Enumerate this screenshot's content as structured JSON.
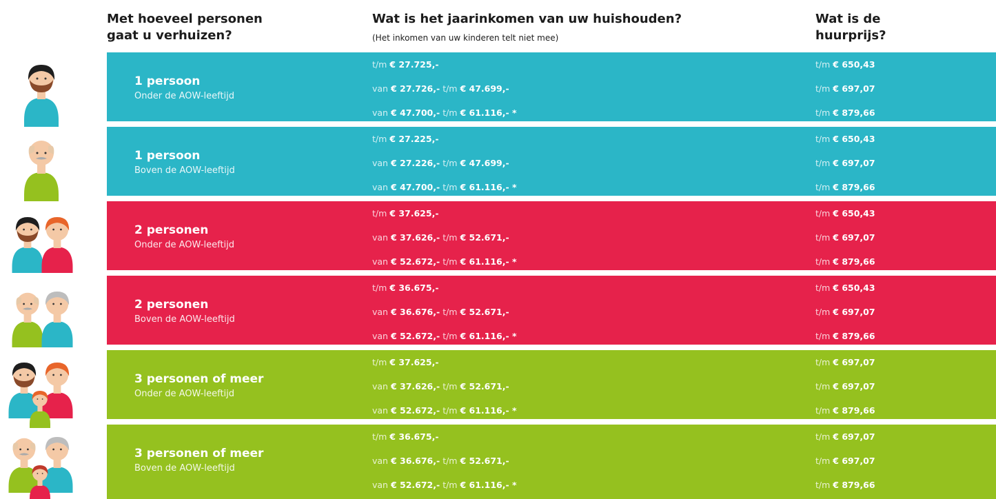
{
  "headers": {
    "persons": "Met hoeveel personen gaat u verhuizen?",
    "income": "Wat is het jaarinkomen van uw huishouden?",
    "income_note": "(Het inkomen van uw kinderen telt niet mee)",
    "rent": "Wat is de huurprijs?"
  },
  "rows": [
    {
      "title": "1 persoon",
      "subtitle": "Onder de AOW-leeftijd",
      "color": "#2bb6c7",
      "income": [
        [
          "t/m",
          "€ 27.725,-"
        ],
        [
          "van",
          "€ 27.726,-",
          "t/m",
          "€ 47.699,-"
        ],
        [
          "van",
          "€ 47.700,-",
          "t/m",
          "€ 61.116,- *"
        ]
      ],
      "rent": [
        [
          "t/m",
          "€ 650,43"
        ],
        [
          "t/m",
          "€ 697,07"
        ],
        [
          "t/m",
          "€ 879,66"
        ]
      ]
    },
    {
      "title": "1 persoon",
      "subtitle": "Boven de AOW-leeftijd",
      "color": "#2bb6c7",
      "income": [
        [
          "t/m",
          "€ 27.225,-"
        ],
        [
          "van",
          "€ 27.226,-",
          "t/m",
          "€ 47.699,-"
        ],
        [
          "van",
          "€ 47.700,-",
          "t/m",
          "€ 61.116,- *"
        ]
      ],
      "rent": [
        [
          "t/m",
          "€ 650,43"
        ],
        [
          "t/m",
          "€ 697,07"
        ],
        [
          "t/m",
          "€ 879,66"
        ]
      ]
    },
    {
      "title": "2 personen",
      "subtitle": "Onder de AOW-leeftijd",
      "color": "#e6224b",
      "income": [
        [
          "t/m",
          "€ 37.625,-"
        ],
        [
          "van",
          "€ 37.626,-",
          "t/m",
          "€ 52.671,-"
        ],
        [
          "van",
          "€ 52.672,-",
          "t/m",
          "€ 61.116,- *"
        ]
      ],
      "rent": [
        [
          "t/m",
          "€ 650,43"
        ],
        [
          "t/m",
          "€ 697,07"
        ],
        [
          "t/m",
          "€ 879,66"
        ]
      ]
    },
    {
      "title": "2 personen",
      "subtitle": "Boven de AOW-leeftijd",
      "color": "#e6224b",
      "income": [
        [
          "t/m",
          "€ 36.675,-"
        ],
        [
          "van",
          "€ 36.676,-",
          "t/m",
          "€ 52.671,-"
        ],
        [
          "van",
          "€ 52.672,-",
          "t/m",
          "€ 61.116,- *"
        ]
      ],
      "rent": [
        [
          "t/m",
          "€ 650,43"
        ],
        [
          "t/m",
          "€ 697,07"
        ],
        [
          "t/m",
          "€ 879,66"
        ]
      ]
    },
    {
      "title": "3 personen of meer",
      "subtitle": "Onder de AOW-leeftijd",
      "color": "#95c11f",
      "income": [
        [
          "t/m",
          "€ 37.625,-"
        ],
        [
          "van",
          "€ 37.626,-",
          "t/m",
          "€ 52.671,-"
        ],
        [
          "van",
          "€ 52.672,-",
          "t/m",
          "€ 61.116,- *"
        ]
      ],
      "rent": [
        [
          "t/m",
          "€ 697,07"
        ],
        [
          "t/m",
          "€ 697,07"
        ],
        [
          "t/m",
          "€ 879,66"
        ]
      ]
    },
    {
      "title": "3 personen of meer",
      "subtitle": "Boven de AOW-leeftijd",
      "color": "#95c11f",
      "income": [
        [
          "t/m",
          "€ 36.675,-"
        ],
        [
          "van",
          "€ 36.676,-",
          "t/m",
          "€ 52.671,-"
        ],
        [
          "van",
          "€ 52.672,-",
          "t/m",
          "€ 61.116,- *"
        ]
      ],
      "rent": [
        [
          "t/m",
          "€ 697,07"
        ],
        [
          "t/m",
          "€ 697,07"
        ],
        [
          "t/m",
          "€ 879,66"
        ]
      ]
    }
  ]
}
